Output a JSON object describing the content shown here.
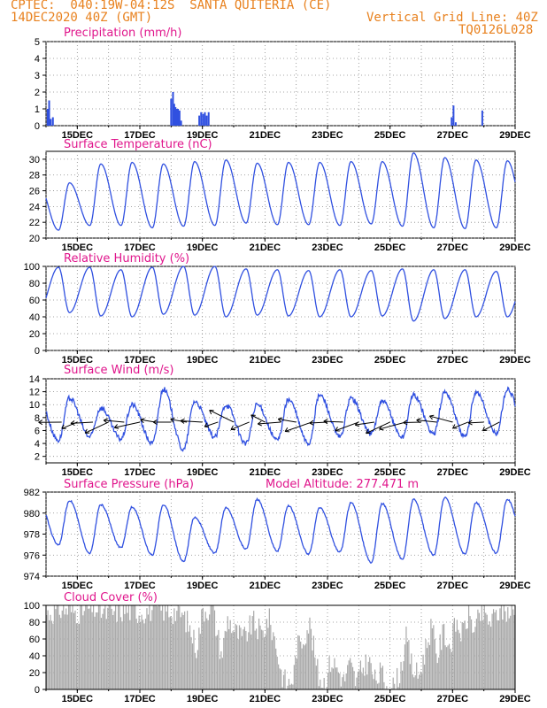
{
  "header": {
    "line1": "CPTEC:  040:19W-04:12S  SANTA QUITERIA (CE)",
    "line2_left": "14DEC2020 40Z (GMT)",
    "line2_right": "Vertical Grid Line: 40Z",
    "line3_right": "TQ0126L028"
  },
  "colors": {
    "header": "#e8811e",
    "title": "#e0168c",
    "line": "#3050e0",
    "bar": "#3050e0",
    "cloud": "#a9a9a9"
  },
  "chart_data": [
    {
      "type": "bar",
      "title": "Precipitation (mm/h)",
      "ylim": [
        0,
        5
      ],
      "yticks": [
        0,
        1,
        2,
        3,
        4,
        5
      ],
      "xticks": [
        "15DEC",
        "17DEC",
        "19DEC",
        "21DEC",
        "23DEC",
        "25DEC",
        "27DEC",
        "29DEC"
      ],
      "xrange_days": [
        14,
        29
      ],
      "values": [
        [
          14.05,
          1.0
        ],
        [
          14.1,
          1.5
        ],
        [
          14.15,
          0.4
        ],
        [
          14.22,
          0.5
        ],
        [
          18.0,
          1.6
        ],
        [
          18.06,
          2.0
        ],
        [
          18.1,
          1.3
        ],
        [
          18.14,
          1.1
        ],
        [
          18.18,
          1.0
        ],
        [
          18.22,
          1.0
        ],
        [
          18.27,
          0.9
        ],
        [
          18.32,
          0.3
        ],
        [
          18.9,
          0.6
        ],
        [
          18.96,
          0.8
        ],
        [
          19.02,
          0.7
        ],
        [
          19.08,
          0.8
        ],
        [
          19.14,
          0.6
        ],
        [
          19.2,
          0.8
        ],
        [
          26.97,
          0.5
        ],
        [
          27.03,
          1.2
        ],
        [
          27.1,
          0.2
        ],
        [
          27.95,
          0.9
        ]
      ]
    },
    {
      "type": "line",
      "title": "Surface Temperature (nC)",
      "ylim": [
        20,
        31
      ],
      "yticks": [
        20,
        22,
        24,
        26,
        28,
        30
      ],
      "xticks": [
        "15DEC",
        "17DEC",
        "19DEC",
        "21DEC",
        "23DEC",
        "25DEC",
        "27DEC",
        "29DEC"
      ],
      "xrange_days": [
        14,
        29
      ],
      "daily_min": [
        21.0,
        21.6,
        21.6,
        21.3,
        21.5,
        21.6,
        21.9,
        21.7,
        21.7,
        21.6,
        21.8,
        21.5,
        21.3,
        21.2,
        21.3,
        21.4
      ],
      "daily_max": [
        27.0,
        29.4,
        29.6,
        29.4,
        29.7,
        29.9,
        29.5,
        29.6,
        29.6,
        29.7,
        29.7,
        30.8,
        30.2,
        29.9,
        29.8,
        30.4
      ]
    },
    {
      "type": "line",
      "title": "Relative Humidity (%)",
      "ylim": [
        0,
        100
      ],
      "yticks": [
        0,
        20,
        40,
        60,
        80,
        100
      ],
      "xticks": [
        "15DEC",
        "17DEC",
        "19DEC",
        "21DEC",
        "23DEC",
        "25DEC",
        "27DEC",
        "29DEC"
      ],
      "xrange_days": [
        14,
        29
      ],
      "daily_min": [
        45,
        41,
        40,
        43,
        42,
        40,
        42,
        41,
        40,
        40,
        41,
        35,
        38,
        40,
        40,
        40
      ],
      "daily_max": [
        99,
        99,
        96,
        99,
        100,
        100,
        97,
        96,
        95,
        96,
        95,
        97,
        96,
        96,
        94,
        97
      ]
    },
    {
      "type": "line",
      "title": "Surface Wind (m/s)",
      "ylim": [
        1,
        14
      ],
      "yticks": [
        2,
        4,
        6,
        8,
        10,
        12,
        14
      ],
      "xticks": [
        "15DEC",
        "17DEC",
        "19DEC",
        "21DEC",
        "23DEC",
        "25DEC",
        "27DEC",
        "29DEC"
      ],
      "xrange_days": [
        14,
        29
      ],
      "daily_min": [
        4.5,
        5.0,
        4.7,
        4.0,
        3.0,
        5.0,
        4.0,
        4.5,
        4.0,
        5.0,
        5.5,
        5.0,
        5.5,
        5.0,
        5.5,
        5.0
      ],
      "daily_max": [
        11.0,
        9.5,
        10.0,
        12.4,
        10.5,
        10.0,
        10.0,
        10.8,
        11.5,
        11.0,
        10.5,
        11.5,
        12.0,
        12.0,
        12.4,
        12.0
      ],
      "vectors": "wind arrows every 12h"
    },
    {
      "type": "line",
      "title": "Surface Pressure (hPa)",
      "annotation": "Model Altitude: 277.471 m",
      "ylim": [
        974,
        982
      ],
      "yticks": [
        974,
        976,
        978,
        980,
        982
      ],
      "xticks": [
        "15DEC",
        "17DEC",
        "19DEC",
        "21DEC",
        "23DEC",
        "25DEC",
        "27DEC",
        "29DEC"
      ],
      "xrange_days": [
        14,
        29
      ],
      "daily_max": [
        981.2,
        980.8,
        980.6,
        980.8,
        979.6,
        980.5,
        981.3,
        980.7,
        980.5,
        981.0,
        980.9,
        981.3,
        981.5,
        981.0,
        981.3,
        979.8
      ],
      "daily_min": [
        977.0,
        976.2,
        976.7,
        976.0,
        975.4,
        976.2,
        976.6,
        976.4,
        976.1,
        976.3,
        975.3,
        975.6,
        976.0,
        976.1,
        976.2,
        976.2
      ]
    },
    {
      "type": "area",
      "title": "Cloud Cover (%)",
      "ylim": [
        0,
        100
      ],
      "yticks": [
        0,
        20,
        40,
        60,
        80,
        100
      ],
      "xticks": [
        "15DEC",
        "17DEC",
        "19DEC",
        "21DEC",
        "23DEC",
        "25DEC",
        "27DEC",
        "29DEC"
      ],
      "xrange_days": [
        14,
        29
      ],
      "profile": [
        [
          14.0,
          90
        ],
        [
          14.5,
          96
        ],
        [
          15.0,
          92
        ],
        [
          15.5,
          97
        ],
        [
          16.0,
          90
        ],
        [
          16.5,
          95
        ],
        [
          17.0,
          92
        ],
        [
          17.5,
          96
        ],
        [
          18.0,
          93
        ],
        [
          18.3,
          90
        ],
        [
          18.5,
          80
        ],
        [
          18.8,
          50
        ],
        [
          19.0,
          94
        ],
        [
          19.3,
          98
        ],
        [
          19.6,
          40
        ],
        [
          19.8,
          85
        ],
        [
          20.0,
          70
        ],
        [
          20.3,
          60
        ],
        [
          20.6,
          80
        ],
        [
          20.9,
          65
        ],
        [
          21.1,
          85
        ],
        [
          21.3,
          60
        ],
        [
          21.5,
          20
        ],
        [
          21.7,
          5
        ],
        [
          21.9,
          15
        ],
        [
          22.0,
          50
        ],
        [
          22.2,
          60
        ],
        [
          22.4,
          80
        ],
        [
          22.7,
          15
        ],
        [
          22.9,
          8
        ],
        [
          23.1,
          35
        ],
        [
          23.3,
          25
        ],
        [
          23.5,
          10
        ],
        [
          23.7,
          30
        ],
        [
          23.9,
          8
        ],
        [
          24.1,
          25
        ],
        [
          24.3,
          35
        ],
        [
          24.5,
          10
        ],
        [
          24.7,
          20
        ],
        [
          24.9,
          5
        ],
        [
          25.1,
          2
        ],
        [
          25.3,
          20
        ],
        [
          25.5,
          60
        ],
        [
          25.7,
          25
        ],
        [
          25.9,
          15
        ],
        [
          26.1,
          45
        ],
        [
          26.3,
          75
        ],
        [
          26.5,
          40
        ],
        [
          26.7,
          70
        ],
        [
          26.9,
          50
        ],
        [
          27.1,
          80
        ],
        [
          27.3,
          65
        ],
        [
          27.5,
          90
        ],
        [
          27.7,
          70
        ],
        [
          27.9,
          92
        ],
        [
          28.2,
          80
        ],
        [
          28.5,
          95
        ],
        [
          29.0,
          90
        ]
      ]
    }
  ]
}
